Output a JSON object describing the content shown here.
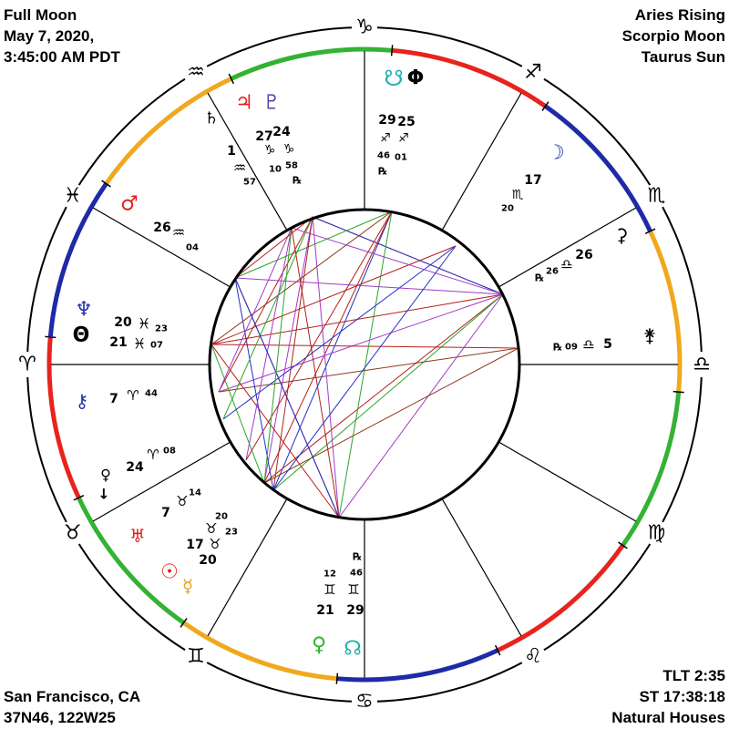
{
  "header": {
    "left": [
      "Full Moon",
      "May 7, 2020,",
      "3:45:00 AM PDT"
    ],
    "right": [
      "Aries Rising",
      "Scorpio Moon",
      "Taurus Sun"
    ]
  },
  "footer": {
    "left": [
      "San Francisco, CA",
      "37N46, 122W25"
    ],
    "right": [
      "TLT 2:35",
      "ST 17:38:18",
      "Natural Houses"
    ]
  },
  "signs": [
    "♈",
    "♉",
    "♊",
    "♋",
    "♌",
    "♍",
    "♎",
    "♏",
    "♐",
    "♑",
    "♒",
    "♓"
  ],
  "placements": [
    "♃",
    "♇",
    "♄",
    "27",
    "24",
    "♑",
    "♑",
    "10",
    "58",
    "℞",
    "1",
    "♒",
    "57",
    "☋",
    "Φ",
    "29",
    "25",
    "♐",
    "♐",
    "46",
    "01",
    "℞",
    "☽",
    "17",
    "♏",
    "20",
    "⚳",
    "26",
    "♎",
    "26",
    "℞",
    "⚵",
    "℞",
    "09",
    "♎",
    "5",
    "♂",
    "26",
    "♒",
    "04",
    "♆",
    "Θ",
    "20",
    "♓",
    "23",
    "21",
    "♓",
    "07",
    "⚷",
    "7",
    "♈",
    "44",
    "♀",
    "↓",
    "24",
    "♈",
    "08",
    "7",
    "♉",
    "14",
    "♅",
    "♉",
    "20",
    "♉",
    "23",
    "17",
    "20",
    "☉",
    "☿",
    "℞",
    "46",
    "12",
    "♊",
    "♊",
    "21",
    "29",
    "♀",
    "☊"
  ]
}
